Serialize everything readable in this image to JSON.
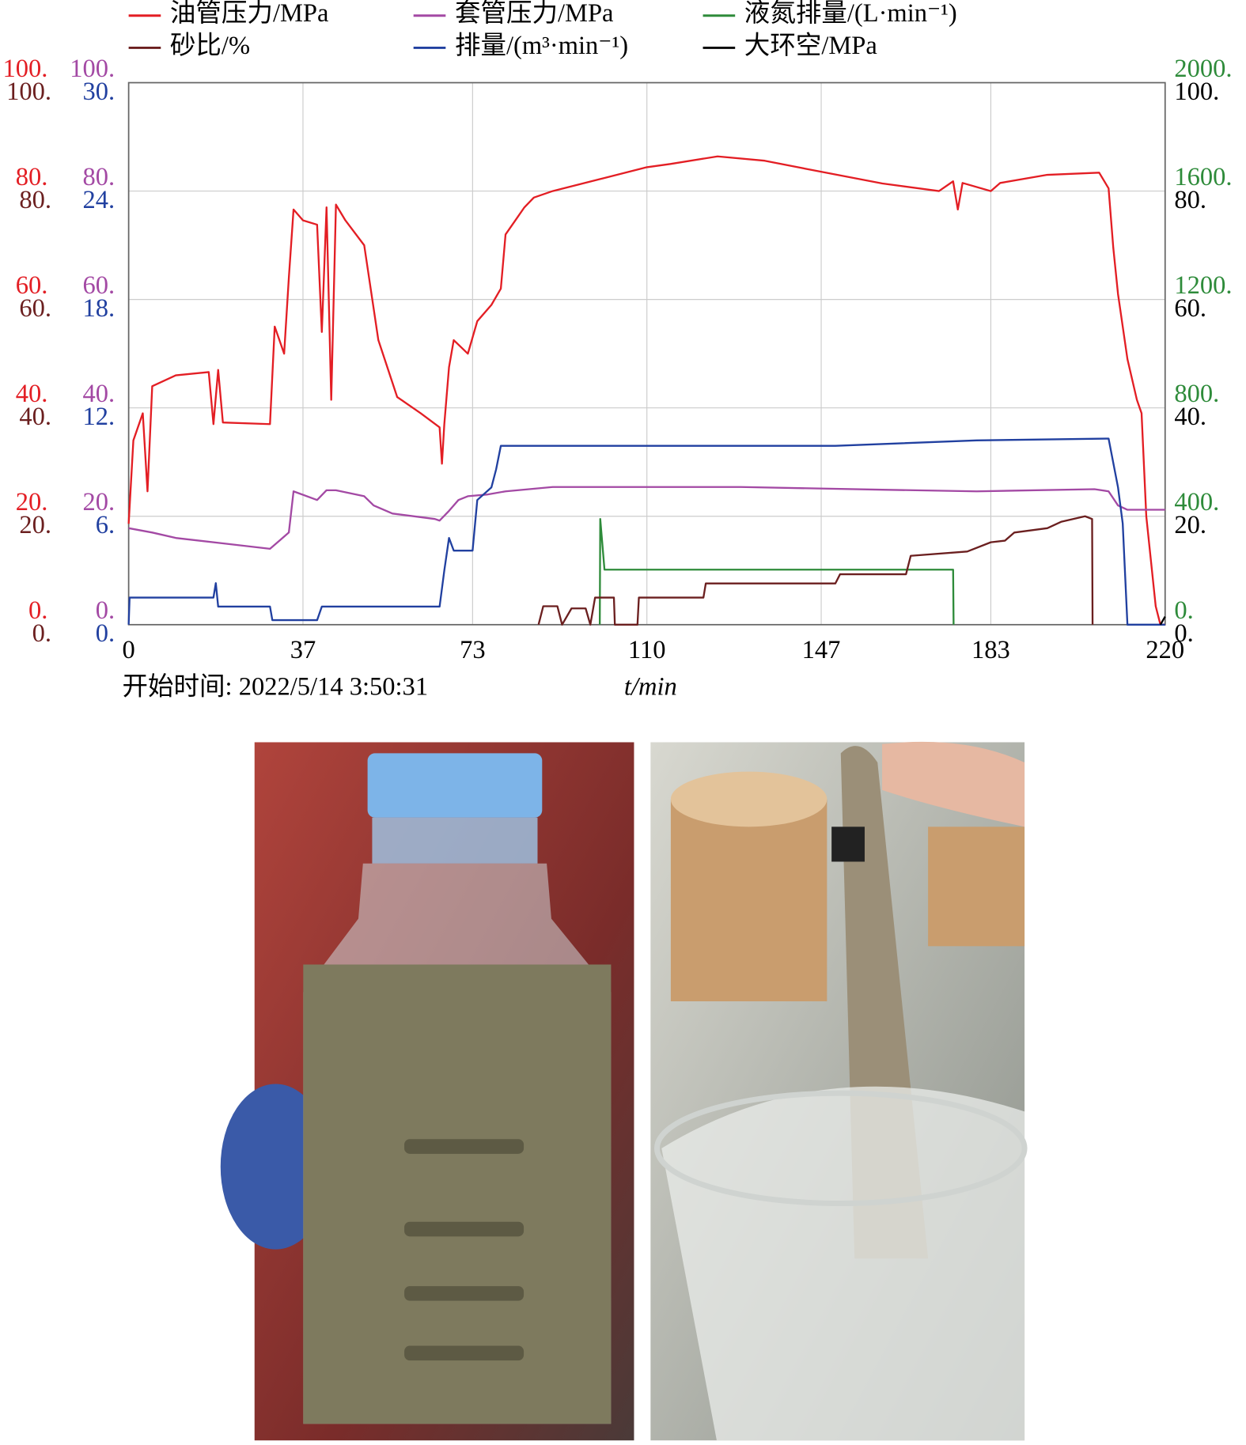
{
  "chart_data": {
    "type": "line",
    "annotation": "开始时间: 2022/5/14 3:50:31",
    "x_label": "t/min",
    "xlim": [
      0,
      220
    ],
    "xticks": [
      0,
      37,
      73,
      110,
      147,
      183,
      220
    ],
    "grid": true,
    "series": [
      {
        "name": "油管压力/MPa",
        "color": "#e31e24",
        "ylim": [
          0,
          100
        ],
        "yticks": [
          {
            "value": 0,
            "label": "0."
          },
          {
            "value": 20,
            "label": "20."
          },
          {
            "value": 40,
            "label": "40."
          },
          {
            "value": 60,
            "label": "60."
          },
          {
            "value": 80,
            "label": "80."
          },
          {
            "value": 100,
            "label": "100."
          }
        ],
        "x": [
          0,
          1,
          3,
          4,
          5,
          10,
          17,
          18,
          19,
          20,
          30,
          31,
          33,
          34,
          35,
          37,
          40,
          41,
          42,
          43,
          44,
          46,
          50,
          53,
          57,
          62,
          66,
          66.5,
          67,
          68,
          69,
          72,
          74,
          77,
          79,
          80,
          82,
          84,
          86,
          90,
          100,
          110,
          115,
          125,
          135,
          145,
          160,
          172,
          175,
          176,
          177,
          183,
          185,
          195,
          206,
          208,
          209,
          210,
          212,
          214,
          215,
          216,
          218,
          219,
          220
        ],
        "values": [
          18.6,
          34,
          39,
          24.6,
          44,
          46,
          46.6,
          37,
          47,
          37.3,
          37,
          55,
          50,
          64,
          76.6,
          74.6,
          73.8,
          54,
          77,
          41.5,
          77.5,
          74.6,
          70,
          52.5,
          42,
          39,
          36.4,
          29.7,
          37,
          47.5,
          52.5,
          50,
          56,
          59,
          62,
          72,
          74.5,
          77,
          78.8,
          80,
          82.2,
          84.4,
          85,
          86.4,
          85.6,
          83.9,
          81.4,
          80,
          81.8,
          76.6,
          81.5,
          80,
          81.5,
          83,
          83.4,
          80.5,
          69.5,
          61,
          49,
          41.5,
          39,
          20,
          3.4,
          0,
          0
        ]
      },
      {
        "name": "套管压力/MPa",
        "color": "#a349a4",
        "ylim": [
          0,
          100
        ],
        "yticks": [
          {
            "value": 0,
            "label": "0."
          },
          {
            "value": 20,
            "label": "20."
          },
          {
            "value": 40,
            "label": "40."
          },
          {
            "value": 60,
            "label": "60."
          },
          {
            "value": 80,
            "label": "80."
          },
          {
            "value": 100,
            "label": "100."
          }
        ],
        "x": [
          0,
          5,
          10,
          20,
          30,
          32,
          34,
          35,
          40,
          42,
          44,
          50,
          52,
          56,
          65,
          66,
          68,
          70,
          72,
          76,
          80,
          90,
          110,
          130,
          160,
          180,
          205,
          208,
          210,
          212,
          220
        ],
        "values": [
          17.8,
          17,
          16,
          15,
          14,
          15.5,
          17,
          24.6,
          23,
          24.8,
          24.8,
          23.7,
          22,
          20.5,
          19.5,
          19.2,
          21,
          23,
          23.7,
          24,
          24.6,
          25.4,
          25.4,
          25.4,
          24.9,
          24.6,
          25,
          24.6,
          22,
          21.2,
          21.2
        ]
      },
      {
        "name": "液氮排量/(L·min⁻¹)",
        "color": "#2e8b3a",
        "ylim": [
          0,
          2000
        ],
        "yticks": [
          {
            "value": 0,
            "label": "0."
          },
          {
            "value": 400,
            "label": "400."
          },
          {
            "value": 800,
            "label": "800."
          },
          {
            "value": 1200,
            "label": "1200."
          },
          {
            "value": 1600,
            "label": "1600."
          },
          {
            "value": 2000,
            "label": "2000."
          }
        ],
        "x": [
          100,
          100.1,
          101,
          175,
          175.1
        ],
        "values": [
          0,
          390,
          203,
          203,
          0
        ]
      },
      {
        "name": "砂比/%",
        "color": "#6b1f1f",
        "ylim": [
          0,
          100
        ],
        "yticks": [
          {
            "value": 0,
            "label": "0."
          },
          {
            "value": 20,
            "label": "20."
          },
          {
            "value": 40,
            "label": "40."
          },
          {
            "value": 60,
            "label": "60."
          },
          {
            "value": 80,
            "label": "80."
          },
          {
            "value": 100,
            "label": "100."
          }
        ],
        "x": [
          87,
          88,
          91,
          92,
          94,
          97,
          98,
          99,
          103,
          103.2,
          108,
          108.3,
          122,
          122.5,
          150,
          151,
          165,
          166,
          178,
          183,
          186,
          188,
          195,
          198,
          203,
          204.5,
          204.6
        ],
        "values": [
          0,
          3.4,
          3.4,
          0,
          3,
          3,
          0,
          5,
          5,
          0,
          0,
          5,
          5,
          7.6,
          7.6,
          9.3,
          9.3,
          12.7,
          13.5,
          15.2,
          15.5,
          17,
          17.8,
          19,
          20,
          19.5,
          0
        ]
      },
      {
        "name": "排量/(m³·min⁻¹)",
        "color": "#2140a0",
        "ylim": [
          0,
          30
        ],
        "yticks": [
          {
            "value": 0,
            "label": "0."
          },
          {
            "value": 6,
            "label": "6."
          },
          {
            "value": 12,
            "label": "12."
          },
          {
            "value": 18,
            "label": "18."
          },
          {
            "value": 24,
            "label": "24."
          },
          {
            "value": 30,
            "label": "30."
          }
        ],
        "x": [
          0,
          0.2,
          18,
          18.5,
          19,
          30,
          30.5,
          40,
          41,
          66,
          67,
          68,
          69,
          73,
          74,
          77,
          78,
          79,
          110,
          150,
          180,
          208,
          210,
          211,
          212,
          220
        ],
        "values": [
          0,
          1.5,
          1.5,
          2.3,
          1,
          1,
          0.25,
          0.25,
          1,
          1,
          3,
          4.8,
          4.1,
          4.1,
          6.9,
          7.6,
          8.6,
          9.9,
          9.9,
          9.9,
          10.2,
          10.3,
          7.6,
          5.6,
          0,
          0
        ]
      },
      {
        "name": "大环空/MPa",
        "color": "#000000",
        "ylim": [
          0,
          100
        ],
        "yticks": [
          {
            "value": 0,
            "label": "0."
          },
          {
            "value": 20,
            "label": "20."
          },
          {
            "value": 40,
            "label": "40."
          },
          {
            "value": 60,
            "label": "60."
          },
          {
            "value": 80,
            "label": "80."
          },
          {
            "value": 100,
            "label": "100."
          }
        ],
        "x": [
          219,
          220
        ],
        "values": [
          0,
          1.5
        ]
      }
    ]
  }
}
